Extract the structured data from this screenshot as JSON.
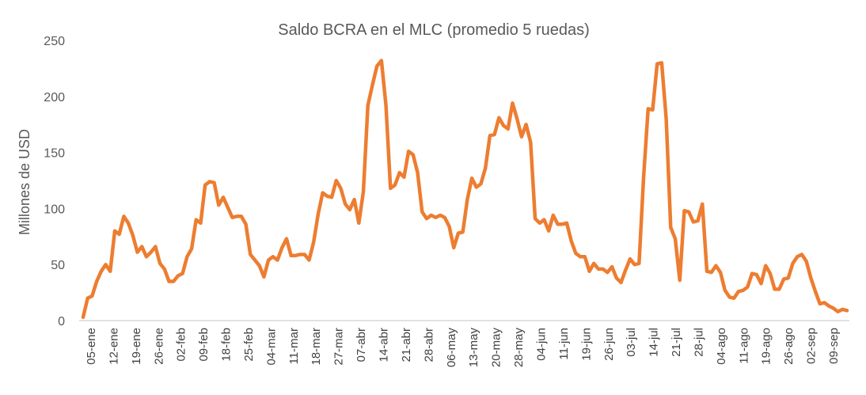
{
  "chart_data": {
    "type": "line",
    "title": "Saldo BCRA en el MLC (promedio 5 ruedas)",
    "ylabel": "Millones de USD",
    "xlabel": "",
    "ylim": [
      0,
      250
    ],
    "yticks": [
      0,
      50,
      100,
      150,
      200,
      250
    ],
    "grid": false,
    "x_ticks": [
      "05-ene",
      "12-ene",
      "19-ene",
      "26-ene",
      "02-feb",
      "09-feb",
      "18-feb",
      "25-feb",
      "04-mar",
      "11-mar",
      "18-mar",
      "27-mar",
      "07-abr",
      "14-abr",
      "21-abr",
      "28-abr",
      "06-may",
      "13-may",
      "20-may",
      "28-may",
      "04-jun",
      "11-jun",
      "19-jun",
      "26-jun",
      "03-jul",
      "14-jul",
      "21-jul",
      "28-jul",
      "04-ago",
      "11-ago",
      "19-ago",
      "26-ago",
      "02-sep",
      "09-sep"
    ],
    "series": [
      {
        "color": "#ED7D31",
        "values": [
          3,
          20,
          22,
          35,
          44,
          50,
          44,
          80,
          77,
          93,
          87,
          76,
          61,
          66,
          57,
          61,
          66,
          51,
          46,
          35,
          35,
          40,
          42,
          57,
          64,
          90,
          87,
          121,
          124,
          123,
          103,
          110,
          101,
          92,
          93,
          93,
          86,
          59,
          54,
          49,
          39,
          54,
          57,
          54,
          65,
          73,
          58,
          58,
          59,
          59,
          54,
          70,
          95,
          114,
          111,
          110,
          125,
          118,
          104,
          99,
          108,
          87,
          115,
          192,
          210,
          227,
          232,
          192,
          118,
          121,
          132,
          128,
          151,
          148,
          132,
          97,
          91,
          94,
          92,
          94,
          92,
          84,
          65,
          78,
          79,
          108,
          127,
          119,
          122,
          136,
          165,
          166,
          181,
          174,
          171,
          194,
          180,
          164,
          175,
          159,
          91,
          87,
          90,
          80,
          94,
          86,
          86,
          87,
          71,
          60,
          57,
          57,
          44,
          51,
          46,
          46,
          43,
          48,
          38,
          34,
          45,
          55,
          50,
          51,
          128,
          189,
          188,
          229,
          230,
          180,
          83,
          73,
          36,
          98,
          97,
          88,
          89,
          104,
          44,
          43,
          49,
          43,
          27,
          21,
          20,
          26,
          27,
          30,
          42,
          41,
          33,
          49,
          42,
          28,
          28,
          37,
          38,
          51,
          57,
          59,
          53,
          38,
          26,
          15,
          16,
          13,
          11,
          8,
          10,
          9
        ]
      }
    ]
  }
}
